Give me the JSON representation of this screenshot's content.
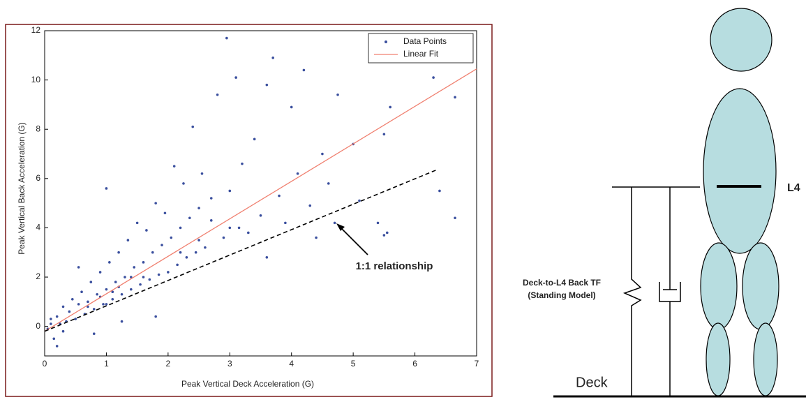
{
  "chart_data": {
    "type": "scatter",
    "x_label": "Peak Vertical Deck Acceleration (G)",
    "y_label": "Peak Vertical Back Acceleration (G)",
    "xlim": [
      0,
      7
    ],
    "ylim": [
      -1.2,
      12
    ],
    "xticks": [
      0,
      1,
      2,
      3,
      4,
      5,
      6,
      7
    ],
    "yticks": [
      0,
      2,
      4,
      6,
      8,
      10,
      12
    ],
    "legend": "upper right",
    "series": [
      {
        "name": "Data Points",
        "color": "#3a4f9e",
        "x": [
          0.05,
          0.1,
          0.15,
          0.2,
          0.25,
          0.3,
          0.35,
          0.4,
          0.45,
          0.5,
          0.55,
          0.6,
          0.65,
          0.7,
          0.75,
          0.8,
          0.85,
          0.9,
          0.95,
          1.0,
          1.05,
          1.1,
          1.15,
          1.2,
          1.25,
          1.3,
          1.35,
          1.4,
          1.45,
          1.5,
          1.55,
          1.6,
          1.65,
          1.7,
          1.75,
          1.8,
          1.85,
          1.9,
          1.95,
          2.0,
          2.05,
          2.1,
          2.15,
          2.2,
          2.25,
          2.3,
          2.35,
          2.4,
          2.45,
          2.5,
          2.55,
          2.6,
          2.7,
          2.8,
          2.9,
          2.95,
          3.0,
          3.1,
          3.15,
          3.2,
          3.3,
          3.4,
          3.5,
          3.6,
          3.7,
          3.8,
          3.9,
          4.0,
          4.1,
          4.2,
          4.3,
          4.4,
          4.5,
          4.6,
          4.75,
          5.0,
          5.1,
          5.4,
          5.5,
          5.55,
          5.6,
          6.3,
          6.4,
          6.65,
          6.65,
          1.0,
          0.55,
          0.2,
          0.8,
          1.25,
          1.8,
          3.6,
          5.5,
          4.7,
          1.0,
          1.2,
          1.4,
          1.6,
          1.1,
          0.9,
          0.7,
          2.2,
          2.5,
          3.0,
          2.7,
          0.3,
          0.1
        ],
        "values": [
          -0.1,
          0.3,
          -0.5,
          0.4,
          0.1,
          0.8,
          0.2,
          0.6,
          1.1,
          0.3,
          0.9,
          1.4,
          0.5,
          1.0,
          1.8,
          0.7,
          1.3,
          2.2,
          0.9,
          1.5,
          2.6,
          1.1,
          1.8,
          3.0,
          1.3,
          2.0,
          3.5,
          1.5,
          2.4,
          4.2,
          1.7,
          2.6,
          3.9,
          1.9,
          3.0,
          5.0,
          2.1,
          3.3,
          4.6,
          2.2,
          3.6,
          6.5,
          2.5,
          4.0,
          5.8,
          2.8,
          4.4,
          8.1,
          3.0,
          4.8,
          6.2,
          3.2,
          5.2,
          9.4,
          3.6,
          11.7,
          5.5,
          10.1,
          4.0,
          6.6,
          3.8,
          7.6,
          4.5,
          9.8,
          10.9,
          5.3,
          4.2,
          8.9,
          6.2,
          10.4,
          4.9,
          3.6,
          7.0,
          5.8,
          9.4,
          7.4,
          5.1,
          4.2,
          7.8,
          3.8,
          8.9,
          10.1,
          5.5,
          9.3,
          4.4,
          5.6,
          2.4,
          -0.8,
          -0.3,
          0.2,
          0.4,
          2.8,
          3.7,
          4.2,
          0.9,
          1.6,
          2.0,
          2.0,
          1.4,
          1.2,
          0.8,
          3.0,
          3.5,
          4.0,
          4.3,
          -0.2,
          0.1
        ]
      },
      {
        "name": "Linear Fit",
        "color": "#f08070",
        "x": [
          0,
          7
        ],
        "values": [
          -0.2,
          10.45
        ]
      }
    ],
    "reference_line": {
      "x": [
        0,
        6.35
      ],
      "values": [
        -0.2,
        6.35
      ]
    },
    "annotation": "1:1 relationship"
  },
  "diagram": {
    "labels": {
      "l4": "L4",
      "model_line1": "Deck-to-L4 Back TF",
      "model_line2": "(Standing Model)",
      "deck": "Deck"
    }
  }
}
